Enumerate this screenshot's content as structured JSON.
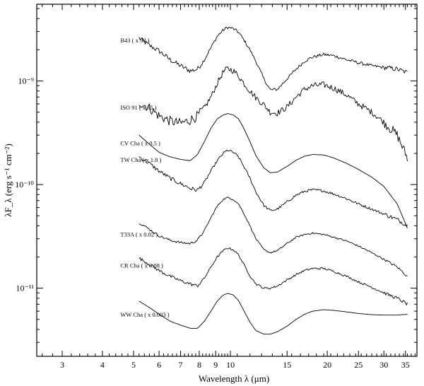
{
  "chart_data": {
    "type": "line",
    "title": "",
    "xlabel": "Wavelength λ (μm)",
    "ylabel": "λF_λ (erg s⁻¹ cm⁻²)",
    "x_scale": "log",
    "y_scale": "log",
    "xlim": [
      2.5,
      38
    ],
    "ylim": [
      2.2e-12,
      5.5e-09
    ],
    "x_ticks": [
      3,
      4,
      5,
      6,
      7,
      8,
      9,
      10,
      15,
      20,
      25,
      30,
      35
    ],
    "y_ticks": [
      {
        "value": 1e-09,
        "label": "10⁻⁹"
      },
      {
        "value": 1e-10,
        "label": "10⁻¹⁰"
      },
      {
        "value": 1e-11,
        "label": "10⁻¹¹"
      }
    ],
    "series": [
      {
        "name": "B43 ( x 90 )",
        "noise": 0.06,
        "x": [
          5.2,
          5.6,
          6.0,
          6.5,
          7.0,
          7.5,
          7.9,
          8.3,
          8.7,
          9.1,
          9.5,
          9.8,
          10.2,
          10.6,
          11.0,
          11.5,
          12.0,
          12.7,
          13.3,
          14.0,
          15.0,
          16.0,
          17.0,
          18.0,
          19.5,
          21.0,
          23.0,
          25.0,
          27.5,
          30.0,
          33.0,
          35.5
        ],
        "y": [
          2.6e-09,
          2.2e-09,
          1.95e-09,
          1.6e-09,
          1.4e-09,
          1.25e-09,
          1.3e-09,
          1.6e-09,
          2.1e-09,
          2.7e-09,
          3.1e-09,
          3.3e-09,
          3.2e-09,
          2.95e-09,
          2.5e-09,
          2e-09,
          1.55e-09,
          1.05e-09,
          8.2e-10,
          8.3e-10,
          1.05e-09,
          1.3e-09,
          1.55e-09,
          1.7e-09,
          1.8e-09,
          1.75e-09,
          1.6e-09,
          1.5e-09,
          1.4e-09,
          1.35e-09,
          1.3e-09,
          1.2e-09
        ]
      },
      {
        "name": "ISO 91 ( x 65 )",
        "noise": 0.12,
        "x": [
          5.2,
          5.6,
          6.0,
          6.5,
          7.0,
          7.5,
          7.9,
          8.3,
          8.7,
          9.1,
          9.5,
          9.8,
          10.2,
          10.6,
          11.0,
          11.5,
          12.0,
          12.7,
          13.3,
          14.0,
          15.0,
          16.0,
          17.0,
          18.0,
          19.5,
          21.0,
          23.0,
          25.0,
          27.5,
          30.0,
          33.0,
          35.5
        ],
        "y": [
          6.2e-10,
          5.5e-10,
          4.6e-10,
          4.1e-10,
          3.9e-10,
          4.2e-10,
          4.6e-10,
          5.5e-10,
          7e-10,
          9.5e-10,
          1.22e-09,
          1.32e-09,
          1.26e-09,
          1.12e-09,
          9.5e-10,
          8e-10,
          6.9e-10,
          5.9e-10,
          5e-10,
          4.9e-10,
          5.6e-10,
          7e-10,
          8.3e-10,
          9e-10,
          9.2e-10,
          8.5e-10,
          7.3e-10,
          6e-10,
          5e-10,
          4e-10,
          3e-10,
          1.8e-10
        ]
      },
      {
        "name": "CV Cha ( x 0.5 )",
        "noise": 0.0,
        "x": [
          5.2,
          5.6,
          6.0,
          6.5,
          7.0,
          7.5,
          7.9,
          8.3,
          8.7,
          9.1,
          9.5,
          9.8,
          10.2,
          10.6,
          11.0,
          11.5,
          12.0,
          12.7,
          13.3,
          14.0,
          15.0,
          16.0,
          17.0,
          18.0,
          19.5,
          21.0,
          23.0,
          25.0,
          27.5,
          30.0,
          33.0,
          35.5
        ],
        "y": [
          3e-10,
          2.45e-10,
          2.05e-10,
          1.85e-10,
          1.75e-10,
          1.7e-10,
          1.95e-10,
          2.6e-10,
          3.5e-10,
          4.3e-10,
          4.7e-10,
          4.85e-10,
          4.7e-10,
          4.3e-10,
          3.5e-10,
          2.6e-10,
          1.9e-10,
          1.45e-10,
          1.3e-10,
          1.32e-10,
          1.5e-10,
          1.72e-10,
          1.88e-10,
          1.95e-10,
          1.93e-10,
          1.8e-10,
          1.6e-10,
          1.4e-10,
          1.18e-10,
          9.6e-11,
          6.5e-11,
          3.8e-11
        ]
      },
      {
        "name": "TW Cha ( x 1.8 )",
        "noise": 0.05,
        "x": [
          5.2,
          5.6,
          6.0,
          6.5,
          7.0,
          7.5,
          7.9,
          8.3,
          8.7,
          9.1,
          9.5,
          9.8,
          10.2,
          10.6,
          11.0,
          11.5,
          12.0,
          12.7,
          13.3,
          14.0,
          15.0,
          16.0,
          17.0,
          18.0,
          19.5,
          21.0,
          23.0,
          25.0,
          27.5,
          30.0,
          33.0,
          35.5
        ],
        "y": [
          1.85e-10,
          1.6e-10,
          1.35e-10,
          1.15e-10,
          1.02e-10,
          9.2e-11,
          8.8e-11,
          1.05e-10,
          1.35e-10,
          1.7e-10,
          2e-10,
          2.15e-10,
          2.05e-10,
          1.85e-10,
          1.5e-10,
          1.15e-10,
          8.5e-11,
          6.3e-11,
          5.6e-11,
          5.8e-11,
          6.8e-11,
          7.9e-11,
          8.6e-11,
          8.9e-11,
          8.7e-11,
          8.1e-11,
          7.3e-11,
          6.5e-11,
          5.8e-11,
          5.2e-11,
          4.6e-11,
          4e-11
        ]
      },
      {
        "name": "T33A ( x 0.02 )",
        "noise": 0.03,
        "x": [
          5.2,
          5.6,
          6.0,
          6.5,
          7.0,
          7.5,
          7.9,
          8.3,
          8.7,
          9.1,
          9.5,
          9.8,
          10.2,
          10.6,
          11.0,
          11.5,
          12.0,
          12.7,
          13.3,
          14.0,
          15.0,
          16.0,
          17.0,
          18.0,
          19.5,
          21.0,
          23.0,
          25.0,
          27.5,
          30.0,
          33.0,
          35.5
        ],
        "y": [
          4.3e-11,
          3.7e-11,
          3.2e-11,
          2.9e-11,
          2.75e-11,
          2.7e-11,
          2.9e-11,
          3.6e-11,
          4.8e-11,
          6.2e-11,
          7.2e-11,
          7.5e-11,
          7.2e-11,
          6.5e-11,
          5.3e-11,
          4e-11,
          3e-11,
          2.35e-11,
          2.2e-11,
          2.3e-11,
          2.7e-11,
          3.1e-11,
          3.3e-11,
          3.4e-11,
          3.3e-11,
          3.1e-11,
          2.85e-11,
          2.55e-11,
          2.2e-11,
          1.9e-11,
          1.6e-11,
          1.3e-11
        ]
      },
      {
        "name": "CR Cha ( x 0.08 )",
        "noise": 0.04,
        "x": [
          5.2,
          5.6,
          6.0,
          6.5,
          7.0,
          7.5,
          7.9,
          8.3,
          8.7,
          9.1,
          9.5,
          9.8,
          10.2,
          10.6,
          11.0,
          11.5,
          12.0,
          12.7,
          13.3,
          14.0,
          15.0,
          16.0,
          17.0,
          18.0,
          19.5,
          21.0,
          23.0,
          25.0,
          27.5,
          30.0,
          33.0,
          35.5
        ],
        "y": [
          1.95e-11,
          1.7e-11,
          1.48e-11,
          1.3e-11,
          1.18e-11,
          1.1e-11,
          1.05e-11,
          1.25e-11,
          1.6e-11,
          2e-11,
          2.3e-11,
          2.45e-11,
          2.35e-11,
          2.1e-11,
          1.7e-11,
          1.32e-11,
          1.1e-11,
          1e-11,
          1e-11,
          1.05e-11,
          1.2e-11,
          1.35e-11,
          1.48e-11,
          1.55e-11,
          1.55e-11,
          1.45e-11,
          1.3e-11,
          1.15e-11,
          1.02e-11,
          9e-12,
          8e-12,
          7e-12
        ]
      },
      {
        "name": "WW Cha ( x 0.003 )",
        "noise": 0.0,
        "x": [
          5.2,
          5.6,
          6.0,
          6.5,
          7.0,
          7.5,
          7.9,
          8.3,
          8.7,
          9.1,
          9.5,
          9.8,
          10.2,
          10.6,
          11.0,
          11.5,
          12.0,
          12.7,
          13.3,
          14.0,
          15.0,
          16.0,
          17.0,
          18.0,
          19.5,
          21.0,
          23.0,
          25.0,
          27.5,
          30.0,
          33.0,
          35.5
        ],
        "y": [
          7.5e-12,
          6.5e-12,
          5.6e-12,
          4.8e-12,
          4.4e-12,
          4.1e-12,
          4.1e-12,
          4.8e-12,
          6e-12,
          7.5e-12,
          8.6e-12,
          8.9e-12,
          8.6e-12,
          7.6e-12,
          6.1e-12,
          4.7e-12,
          3.9e-12,
          3.6e-12,
          3.6e-12,
          3.8e-12,
          4.3e-12,
          5e-12,
          5.6e-12,
          6e-12,
          6.2e-12,
          6.1e-12,
          5.9e-12,
          5.7e-12,
          5.55e-12,
          5.5e-12,
          5.5e-12,
          5.6e-12
        ]
      }
    ],
    "labels": [
      {
        "text": "B43 ( x 90 )",
        "x": 4.55,
        "y": 2.35e-09
      },
      {
        "text": "ISO 91 ( x 65 )",
        "x": 4.55,
        "y": 5.3e-10
      },
      {
        "text": "CV Cha ( x 0.5 )",
        "x": 4.55,
        "y": 2.4e-10
      },
      {
        "text": "TW Cha ( x 1.8 )",
        "x": 4.55,
        "y": 1.65e-10
      },
      {
        "text": "T33A ( x 0.02 )",
        "x": 4.55,
        "y": 3.15e-11
      },
      {
        "text": "CR Cha ( x 0.08 )",
        "x": 4.55,
        "y": 1.58e-11
      },
      {
        "text": "WW Cha ( x 0.003 )",
        "x": 4.55,
        "y": 5.3e-12
      }
    ]
  }
}
